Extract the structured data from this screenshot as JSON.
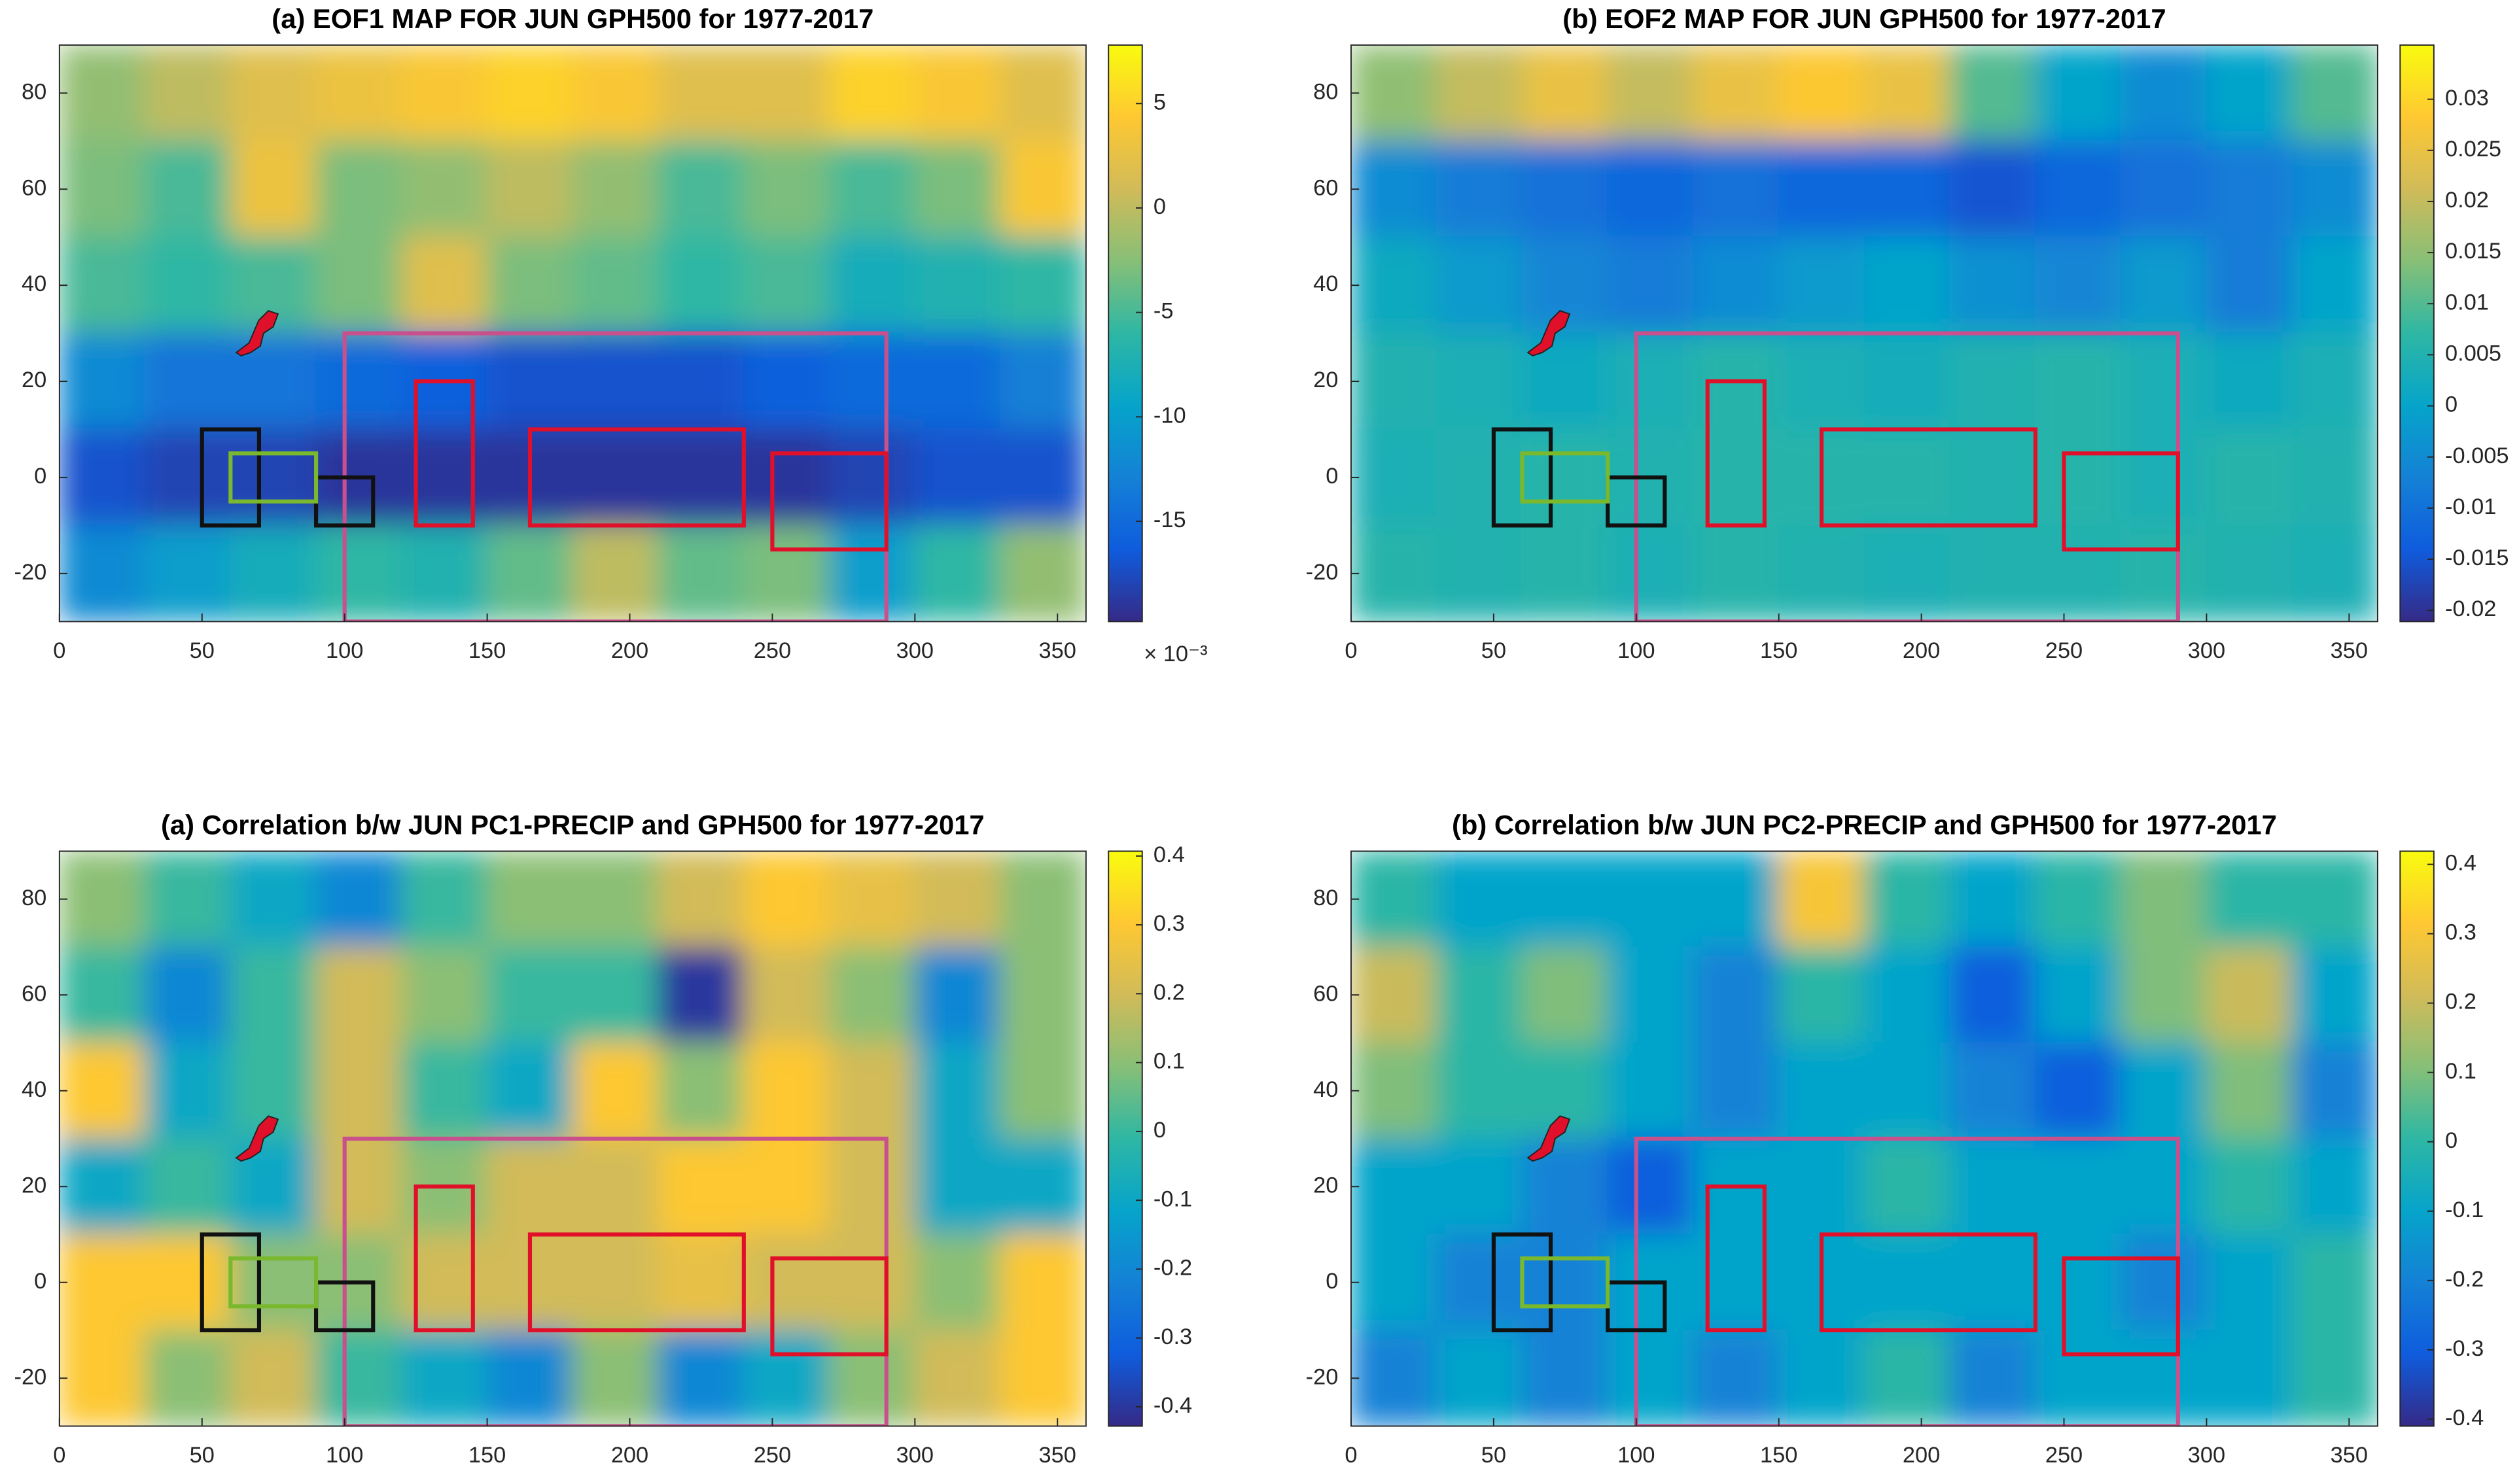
{
  "colormap": [
    "#352a87",
    "#0f5cdd",
    "#1481d6",
    "#06a4ca",
    "#2eb7a4",
    "#87bf77",
    "#d1bb59",
    "#fec832",
    "#f9fb0e"
  ],
  "regions": [
    {
      "x": [
        100,
        290
      ],
      "y": [
        -30,
        30
      ],
      "color": "#c8508c"
    },
    {
      "x": [
        125,
        145
      ],
      "y": [
        -10,
        20
      ],
      "color": "#e0102a"
    },
    {
      "x": [
        165,
        240
      ],
      "y": [
        -10,
        10
      ],
      "color": "#e0102a"
    },
    {
      "x": [
        250,
        290
      ],
      "y": [
        -15,
        5
      ],
      "color": "#e0102a"
    },
    {
      "x": [
        50,
        70
      ],
      "y": [
        -10,
        10
      ],
      "color": "#111111"
    },
    {
      "x": [
        90,
        110
      ],
      "y": [
        -10,
        0
      ],
      "color": "#111111"
    },
    {
      "x": [
        60,
        90
      ],
      "y": [
        -5,
        5
      ],
      "color": "#7ab82e"
    }
  ],
  "chart_data": [
    {
      "type": "heatmap",
      "title": "(a) EOF1 MAP FOR JUN GPH500 for 1977-2017",
      "xlim": [
        0,
        360
      ],
      "ylim": [
        -30,
        90
      ],
      "xticks": [
        0,
        50,
        100,
        150,
        200,
        250,
        300,
        350
      ],
      "yticks": [
        -20,
        0,
        20,
        40,
        60,
        80
      ],
      "x": [
        15,
        45,
        75,
        105,
        135,
        165,
        195,
        225,
        255,
        285,
        315,
        345
      ],
      "y": [
        80,
        60,
        40,
        20,
        0,
        -20
      ],
      "z": [
        [
          -2,
          0,
          2,
          3,
          4,
          5,
          4,
          2,
          2,
          5,
          4,
          2
        ],
        [
          -3,
          -5,
          3,
          -3,
          -2,
          0,
          -2,
          -5,
          -3,
          -5,
          -3,
          4
        ],
        [
          -5,
          -6,
          -5,
          -3,
          2,
          -3,
          -4,
          -6,
          -5,
          -8,
          -7,
          -6
        ],
        [
          -12,
          -14,
          -14,
          -15,
          -16,
          -17,
          -17,
          -17,
          -16,
          -15,
          -15,
          -13
        ],
        [
          -17,
          -18,
          -18,
          -19,
          -19,
          -19,
          -19,
          -19,
          -19,
          -18,
          -17,
          -17
        ],
        [
          -12,
          -10,
          -8,
          -6,
          -7,
          -4,
          0,
          -4,
          -3,
          -10,
          -6,
          -2
        ]
      ],
      "colorbar": {
        "clim": [
          -19.8,
          7.8
        ],
        "ticks": [
          -15,
          -10,
          -5,
          0,
          5
        ],
        "exponent_label": "× 10⁻³"
      }
    },
    {
      "type": "heatmap",
      "title": "(b) EOF2 MAP FOR JUN GPH500 for 1977-2017",
      "xlim": [
        0,
        360
      ],
      "ylim": [
        -30,
        90
      ],
      "xticks": [
        0,
        50,
        100,
        150,
        200,
        250,
        300,
        350
      ],
      "yticks": [
        -20,
        0,
        20,
        40,
        60,
        80
      ],
      "x": [
        15,
        45,
        75,
        105,
        135,
        165,
        195,
        225,
        255,
        285,
        315,
        345
      ],
      "y": [
        80,
        60,
        40,
        20,
        0,
        -20
      ],
      "z": [
        [
          0.015,
          0.02,
          0.025,
          0.02,
          0.025,
          0.028,
          0.025,
          0.01,
          0,
          -0.005,
          0,
          0.01
        ],
        [
          -0.005,
          -0.008,
          -0.01,
          -0.012,
          -0.01,
          -0.012,
          -0.012,
          -0.015,
          -0.012,
          -0.01,
          -0.008,
          -0.005
        ],
        [
          0.002,
          -0.002,
          -0.006,
          -0.008,
          -0.005,
          -0.002,
          0,
          -0.004,
          -0.006,
          -0.002,
          -0.008,
          0
        ],
        [
          0.005,
          0.004,
          0.002,
          0.004,
          0.006,
          0.004,
          0.003,
          0.005,
          0.006,
          0.004,
          0.002,
          0.004
        ],
        [
          0.004,
          0.005,
          0.006,
          0.005,
          0.006,
          0.006,
          0.006,
          0.005,
          0.006,
          0.004,
          0.006,
          0.005
        ],
        [
          0.006,
          0.005,
          0.006,
          0.004,
          0.006,
          0.005,
          0.004,
          0.005,
          0.005,
          0.006,
          0.005,
          0.004
        ]
      ],
      "colorbar": {
        "clim": [
          -0.0211,
          0.0353
        ],
        "ticks": [
          -0.02,
          -0.015,
          -0.01,
          -0.005,
          0,
          0.005,
          0.01,
          0.015,
          0.02,
          0.025,
          0.03
        ]
      }
    },
    {
      "type": "heatmap",
      "title": "(a) Correlation b/w JUN PC1-PRECIP and GPH500 for 1977-2017",
      "xlim": [
        0,
        360
      ],
      "ylim": [
        -30,
        90
      ],
      "xticks": [
        0,
        50,
        100,
        150,
        200,
        250,
        300,
        350
      ],
      "yticks": [
        -20,
        0,
        20,
        40,
        60,
        80
      ],
      "x": [
        15,
        45,
        75,
        105,
        135,
        165,
        195,
        225,
        255,
        285,
        315,
        345
      ],
      "y": [
        80,
        60,
        40,
        20,
        0,
        -20
      ],
      "z": [
        [
          0.1,
          0,
          -0.1,
          -0.2,
          0,
          0.1,
          0.1,
          0.2,
          0.3,
          0.25,
          0.2,
          0.1
        ],
        [
          0,
          -0.2,
          0,
          0.2,
          0.1,
          0,
          0,
          -0.4,
          0.2,
          0.1,
          -0.2,
          0.1
        ],
        [
          0.3,
          -0.1,
          0,
          0.2,
          0,
          -0.1,
          0.3,
          0.1,
          0.3,
          0.2,
          -0.1,
          0.1
        ],
        [
          -0.1,
          0,
          -0.1,
          0.2,
          0.1,
          0.2,
          0.2,
          0.3,
          0.3,
          0.2,
          -0.1,
          -0.1
        ],
        [
          0.3,
          0.3,
          0.1,
          0.1,
          0.2,
          0.2,
          0.2,
          0.25,
          0.2,
          0.2,
          0.1,
          0.3
        ],
        [
          0.3,
          0.1,
          0.2,
          0,
          -0.1,
          -0.2,
          0.1,
          -0.2,
          -0.1,
          0.1,
          0.2,
          0.3
        ]
      ],
      "colorbar": {
        "clim": [
          -0.428,
          0.407
        ],
        "ticks": [
          -0.4,
          -0.3,
          -0.2,
          -0.1,
          0,
          0.1,
          0.2,
          0.3,
          0.4
        ]
      }
    },
    {
      "type": "heatmap",
      "title": "(b) Correlation b/w JUN PC2-PRECIP and GPH500 for 1977-2017",
      "xlim": [
        0,
        360
      ],
      "ylim": [
        -30,
        90
      ],
      "xticks": [
        0,
        50,
        100,
        150,
        200,
        250,
        300,
        350
      ],
      "yticks": [
        -20,
        0,
        20,
        40,
        60,
        80
      ],
      "x": [
        15,
        45,
        75,
        105,
        135,
        165,
        195,
        225,
        255,
        285,
        315,
        345
      ],
      "y": [
        80,
        60,
        40,
        20,
        0,
        -20
      ],
      "z": [
        [
          0,
          -0.1,
          -0.1,
          -0.1,
          -0.1,
          0.3,
          0,
          -0.1,
          0,
          0.1,
          0,
          0
        ],
        [
          0.2,
          0,
          0.1,
          -0.1,
          -0.2,
          0,
          -0.1,
          -0.3,
          -0.1,
          0.1,
          0.2,
          -0.1
        ],
        [
          0.1,
          0,
          0,
          -0.1,
          -0.2,
          -0.1,
          -0.1,
          -0.2,
          -0.3,
          -0.1,
          0.1,
          -0.2
        ],
        [
          -0.1,
          -0.1,
          -0.2,
          -0.3,
          -0.1,
          -0.1,
          0,
          -0.1,
          -0.1,
          -0.1,
          0,
          -0.1
        ],
        [
          -0.1,
          -0.2,
          -0.2,
          -0.1,
          -0.1,
          -0.1,
          -0.1,
          -0.1,
          -0.1,
          -0.2,
          -0.1,
          0
        ],
        [
          -0.2,
          -0.1,
          -0.2,
          -0.1,
          -0.2,
          -0.1,
          0,
          -0.2,
          -0.1,
          -0.1,
          -0.1,
          0
        ]
      ],
      "colorbar": {
        "clim": [
          -0.41,
          0.419
        ],
        "ticks": [
          -0.4,
          -0.3,
          -0.2,
          -0.1,
          0,
          0.1,
          0.2,
          0.3,
          0.4
        ]
      }
    }
  ]
}
